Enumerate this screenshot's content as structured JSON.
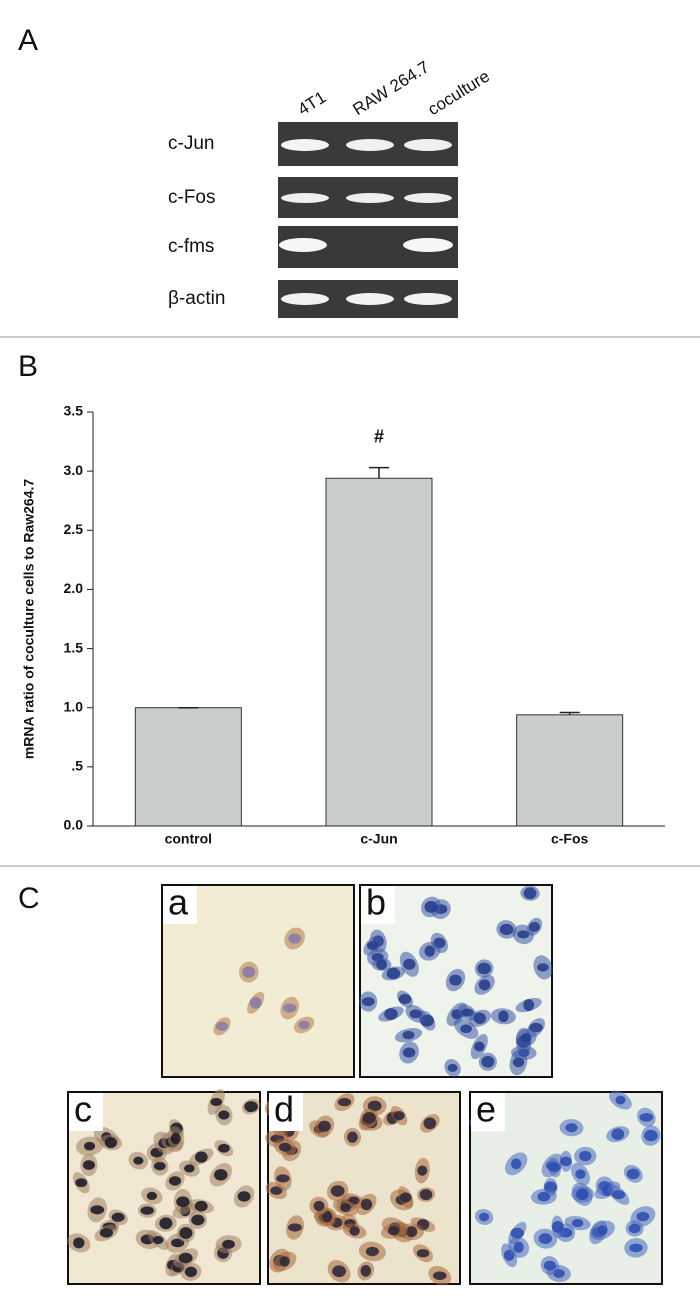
{
  "panel_a": {
    "letter": "A",
    "lanes": [
      "4T1",
      "RAW 264.7",
      "coculture"
    ],
    "genes": [
      "c-Jun",
      "c-Fos",
      "c-fms",
      "β-actin"
    ]
  },
  "chart_data": {
    "type": "bar",
    "letter": "B",
    "y_label": "mRNA ratio of coculture cells to Raw264.7",
    "categories": [
      "control",
      "c-Jun",
      "c-Fos"
    ],
    "values": [
      1.0,
      2.94,
      0.94
    ],
    "errors": [
      0.0,
      0.09,
      0.02
    ],
    "color": "#c8cecc",
    "ylim": [
      0,
      3.5
    ],
    "yticks": [
      {
        "value": 0,
        "label": "0.0"
      },
      {
        "value": 0.5,
        "label": ".5"
      },
      {
        "value": 1,
        "label": "1.0"
      },
      1.5,
      {
        "value": 2,
        "label": "2.0"
      },
      2.5,
      {
        "value": 3,
        "label": "3.0"
      },
      3.5
    ],
    "annotation": {
      "text": "#",
      "category": "c-Jun"
    }
  },
  "panel_c": {
    "letter": "C",
    "images": [
      "a",
      "b",
      "c",
      "d",
      "e"
    ]
  }
}
